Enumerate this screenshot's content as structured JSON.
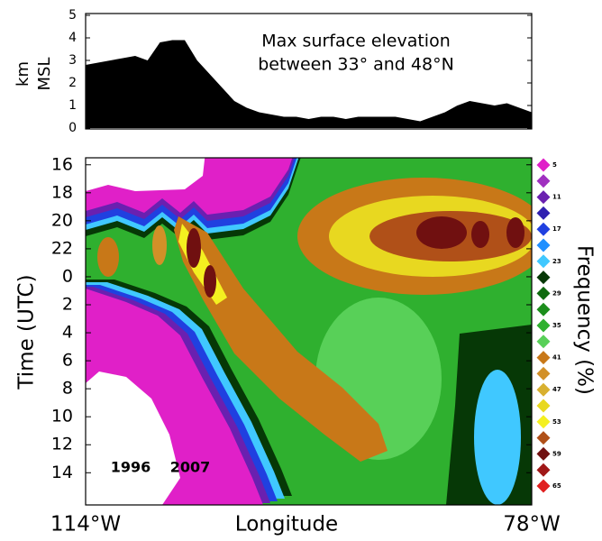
{
  "chart_data": [
    {
      "type": "area",
      "annotation": [
        "Max surface elevation",
        "between 33° and 48°N"
      ],
      "ylabel": [
        "km",
        "MSL"
      ],
      "color": "#000000",
      "x": [
        -114,
        -113,
        -112,
        -111,
        -110,
        -109,
        -108,
        -107,
        -106,
        -105,
        -104,
        -103,
        -102,
        -101,
        -100,
        -99,
        -98,
        -97,
        -96,
        -95,
        -94,
        -93,
        -92,
        -91,
        -90,
        -89,
        -88,
        -87,
        -86,
        -85,
        -84,
        -83,
        -82,
        -81,
        -80,
        -79,
        -78
      ],
      "values": [
        2.8,
        2.9,
        3.0,
        3.1,
        3.2,
        3.0,
        3.8,
        3.9,
        3.9,
        3.0,
        2.4,
        1.8,
        1.2,
        0.9,
        0.7,
        0.6,
        0.5,
        0.5,
        0.4,
        0.5,
        0.5,
        0.4,
        0.5,
        0.5,
        0.5,
        0.5,
        0.4,
        0.3,
        0.5,
        0.7,
        1.0,
        1.2,
        1.1,
        1.0,
        1.1,
        0.9,
        0.7
      ],
      "xlim": [
        -114,
        -78
      ],
      "ylim": [
        0,
        5
      ],
      "yticks": [
        0,
        1,
        2,
        3,
        4,
        5
      ]
    },
    {
      "type": "contour",
      "xlabel": "Longitude",
      "ylabel": "Time (UTC)",
      "xlim": [
        -114,
        -78
      ],
      "xticks": [
        {
          "value": -114,
          "label": "114°W"
        },
        {
          "value": -78,
          "label": "78°W"
        }
      ],
      "ylim": [
        15.5,
        40.3
      ],
      "yticks": [
        16,
        18,
        20,
        22,
        {
          "value": 24,
          "label": "0"
        },
        {
          "value": 26,
          "label": "2"
        },
        {
          "value": 28,
          "label": "4"
        },
        {
          "value": 30,
          "label": "6"
        },
        {
          "value": 32,
          "label": "8"
        },
        {
          "value": 34,
          "label": "10"
        },
        {
          "value": 36,
          "label": "12"
        },
        {
          "value": 38,
          "label": "14"
        }
      ],
      "annotations": [
        "1996",
        "2007"
      ],
      "colorbar": {
        "label": "Frequency (%)",
        "levels": [
          5,
          8,
          11,
          14,
          17,
          20,
          23,
          26,
          29,
          32,
          35,
          38,
          41,
          44,
          47,
          50,
          53,
          56,
          59,
          62,
          65
        ],
        "colors": [
          "#e020c8",
          "#a030c0",
          "#6a20b0",
          "#3020b0",
          "#2040e0",
          "#2090ff",
          "#40c8ff",
          "#063806",
          "#0f6a0f",
          "#1c8e1c",
          "#2fb02f",
          "#58d058",
          "#c87818",
          "#d29028",
          "#d8b030",
          "#e8d820",
          "#f4f020",
          "#b05018",
          "#701010",
          "#a01818",
          "#e02020"
        ],
        "ticks": [
          5,
          11,
          17,
          23,
          29,
          35,
          41,
          47,
          53,
          59,
          65
        ]
      }
    }
  ]
}
